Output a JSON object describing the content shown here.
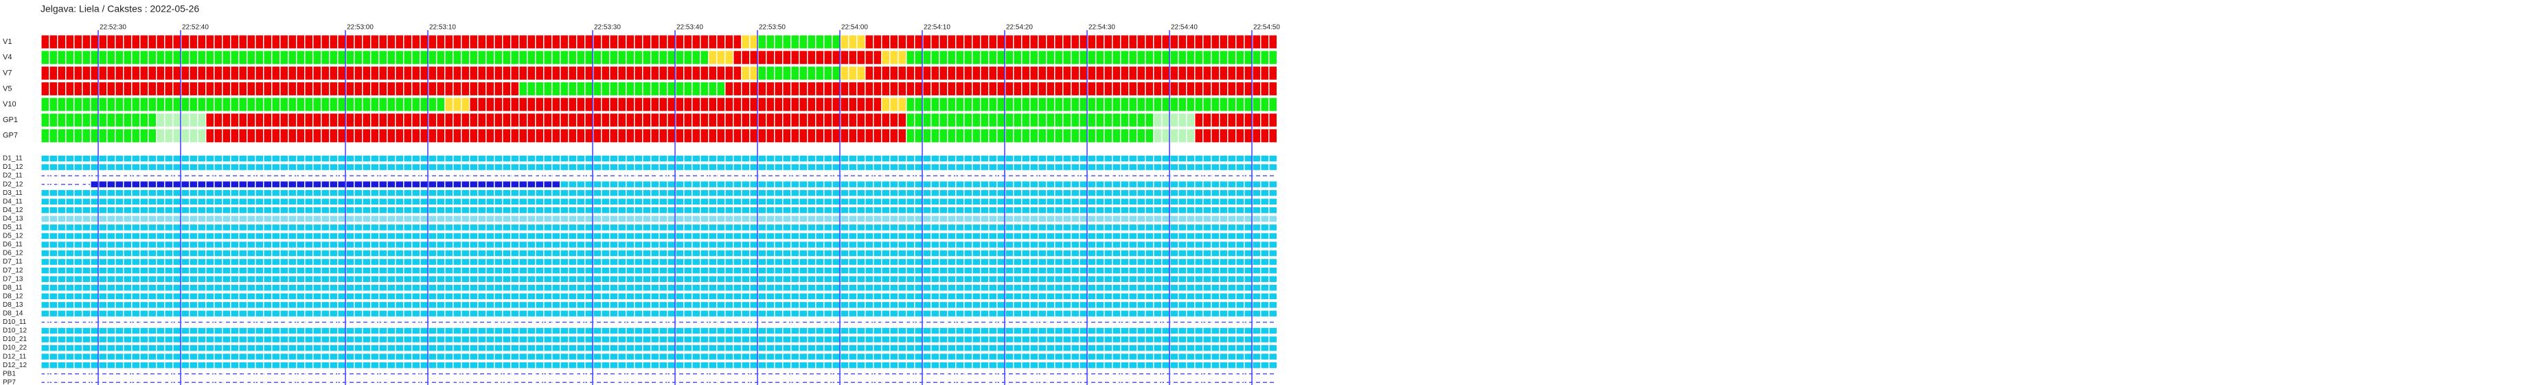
{
  "chart_data": {
    "type": "timeline",
    "title": "Jelgava: Liela / Cakstes : 2022-05-26",
    "xlim": [
      23,
      173
    ],
    "xticks": [
      {
        "value": 30,
        "label": "22:52:30"
      },
      {
        "value": 40,
        "label": "22:52:40"
      },
      {
        "value": 60,
        "label": "22:53:00"
      },
      {
        "value": 70,
        "label": "22:53:10"
      },
      {
        "value": 90,
        "label": "22:53:30"
      },
      {
        "value": 100,
        "label": "22:53:40"
      },
      {
        "value": 110,
        "label": "22:53:50"
      },
      {
        "value": 120,
        "label": "22:54:00"
      },
      {
        "value": 130,
        "label": "22:54:10"
      },
      {
        "value": 140,
        "label": "22:54:20"
      },
      {
        "value": 150,
        "label": "22:54:30"
      },
      {
        "value": 160,
        "label": "22:54:40"
      },
      {
        "value": 170,
        "label": "22:54:50"
      }
    ],
    "grid_color": "#3a3aff",
    "signals": [
      {
        "name": "V1",
        "segments": [
          {
            "start": 23,
            "end": 108,
            "color": "#ee0000"
          },
          {
            "start": 108,
            "end": 110,
            "color": "#ffdd33"
          },
          {
            "start": 110,
            "end": 120,
            "color": "#11ee11"
          },
          {
            "start": 120,
            "end": 123,
            "color": "#ffdd33"
          },
          {
            "start": 123,
            "end": 173,
            "color": "#ee0000"
          }
        ]
      },
      {
        "name": "V4",
        "segments": [
          {
            "start": 23,
            "end": 104,
            "color": "#11ee11"
          },
          {
            "start": 104,
            "end": 107,
            "color": "#ffdd33"
          },
          {
            "start": 107,
            "end": 125,
            "color": "#ee0000"
          },
          {
            "start": 125,
            "end": 128,
            "color": "#ffdd33"
          },
          {
            "start": 128,
            "end": 173,
            "color": "#11ee11"
          }
        ]
      },
      {
        "name": "V7",
        "segments": [
          {
            "start": 23,
            "end": 108,
            "color": "#ee0000"
          },
          {
            "start": 108,
            "end": 110,
            "color": "#ffdd33"
          },
          {
            "start": 110,
            "end": 120,
            "color": "#11ee11"
          },
          {
            "start": 120,
            "end": 123,
            "color": "#ffdd33"
          },
          {
            "start": 123,
            "end": 173,
            "color": "#ee0000"
          }
        ]
      },
      {
        "name": "V5",
        "segments": [
          {
            "start": 23,
            "end": 81,
            "color": "#ee0000"
          },
          {
            "start": 81,
            "end": 106,
            "color": "#11ee11"
          },
          {
            "start": 106,
            "end": 173,
            "color": "#ee0000"
          }
        ]
      },
      {
        "name": "V10",
        "segments": [
          {
            "start": 23,
            "end": 72,
            "color": "#11ee11"
          },
          {
            "start": 72,
            "end": 75,
            "color": "#ffdd33"
          },
          {
            "start": 75,
            "end": 125,
            "color": "#ee0000"
          },
          {
            "start": 125,
            "end": 128,
            "color": "#ffdd33"
          },
          {
            "start": 128,
            "end": 173,
            "color": "#11ee11"
          }
        ]
      },
      {
        "name": "GP1",
        "segments": [
          {
            "start": 23,
            "end": 37,
            "color": "#11ee11"
          },
          {
            "start": 37,
            "end": 43,
            "color": "#b8f5b8"
          },
          {
            "start": 43,
            "end": 128,
            "color": "#ee0000"
          },
          {
            "start": 128,
            "end": 158,
            "color": "#11ee11"
          },
          {
            "start": 158,
            "end": 163,
            "color": "#b8f5b8"
          },
          {
            "start": 163,
            "end": 173,
            "color": "#ee0000"
          }
        ]
      },
      {
        "name": "GP7",
        "segments": [
          {
            "start": 23,
            "end": 37,
            "color": "#11ee11"
          },
          {
            "start": 37,
            "end": 43,
            "color": "#b8f5b8"
          },
          {
            "start": 43,
            "end": 128,
            "color": "#ee0000"
          },
          {
            "start": 128,
            "end": 158,
            "color": "#11ee11"
          },
          {
            "start": 158,
            "end": 163,
            "color": "#b8f5b8"
          },
          {
            "start": 163,
            "end": 173,
            "color": "#ee0000"
          }
        ]
      }
    ],
    "detectors": [
      {
        "name": "D1_11",
        "segments": [
          {
            "start": 23,
            "end": 173,
            "color": "#11ccee"
          }
        ]
      },
      {
        "name": "D1_12",
        "segments": [
          {
            "start": 23,
            "end": 173,
            "color": "#11ccee"
          }
        ]
      },
      {
        "name": "D2_11",
        "segments": [
          {
            "start": 23,
            "end": 173,
            "style": "dashed"
          }
        ]
      },
      {
        "name": "D2_12",
        "segments": [
          {
            "start": 23,
            "end": 29,
            "style": "dashed"
          },
          {
            "start": 29,
            "end": 86,
            "color": "#1a1add"
          },
          {
            "start": 86,
            "end": 173,
            "color": "#11ccee"
          }
        ]
      },
      {
        "name": "D3_11",
        "segments": [
          {
            "start": 23,
            "end": 173,
            "color": "#11ccee"
          }
        ]
      },
      {
        "name": "D4_11",
        "segments": [
          {
            "start": 23,
            "end": 173,
            "color": "#11ccee"
          }
        ]
      },
      {
        "name": "D4_12",
        "segments": [
          {
            "start": 23,
            "end": 173,
            "color": "#11ccee"
          }
        ]
      },
      {
        "name": "D4_13",
        "segments": [
          {
            "start": 23,
            "end": 173,
            "color": "#88ddf0"
          }
        ]
      },
      {
        "name": "D5_11",
        "segments": [
          {
            "start": 23,
            "end": 173,
            "color": "#11ccee"
          }
        ]
      },
      {
        "name": "D5_12",
        "segments": [
          {
            "start": 23,
            "end": 173,
            "color": "#11ccee"
          }
        ]
      },
      {
        "name": "D6_11",
        "segments": [
          {
            "start": 23,
            "end": 173,
            "color": "#11ccee"
          }
        ]
      },
      {
        "name": "D6_12",
        "segments": [
          {
            "start": 23,
            "end": 173,
            "color": "#11ccee"
          }
        ]
      },
      {
        "name": "D7_11",
        "segments": [
          {
            "start": 23,
            "end": 173,
            "color": "#11ccee"
          }
        ]
      },
      {
        "name": "D7_12",
        "segments": [
          {
            "start": 23,
            "end": 173,
            "color": "#11ccee"
          }
        ]
      },
      {
        "name": "D7_13",
        "segments": [
          {
            "start": 23,
            "end": 173,
            "color": "#11ccee"
          }
        ]
      },
      {
        "name": "D8_11",
        "segments": [
          {
            "start": 23,
            "end": 173,
            "color": "#11ccee"
          }
        ]
      },
      {
        "name": "D8_12",
        "segments": [
          {
            "start": 23,
            "end": 173,
            "color": "#11ccee"
          }
        ]
      },
      {
        "name": "D8_13",
        "segments": [
          {
            "start": 23,
            "end": 173,
            "color": "#11ccee"
          }
        ]
      },
      {
        "name": "D8_14",
        "segments": [
          {
            "start": 23,
            "end": 173,
            "color": "#11ccee"
          }
        ]
      },
      {
        "name": "D10_11",
        "segments": [
          {
            "start": 23,
            "end": 173,
            "style": "dashed"
          }
        ]
      },
      {
        "name": "D10_12",
        "segments": [
          {
            "start": 23,
            "end": 173,
            "color": "#11ccee"
          }
        ]
      },
      {
        "name": "D10_21",
        "segments": [
          {
            "start": 23,
            "end": 173,
            "color": "#11ccee"
          }
        ]
      },
      {
        "name": "D10_22",
        "segments": [
          {
            "start": 23,
            "end": 173,
            "color": "#11ccee"
          }
        ]
      },
      {
        "name": "D12_11",
        "segments": [
          {
            "start": 23,
            "end": 173,
            "color": "#11ccee"
          }
        ]
      },
      {
        "name": "D12_12",
        "segments": [
          {
            "start": 23,
            "end": 173,
            "color": "#11ccee"
          }
        ]
      },
      {
        "name": "PB1",
        "segments": [
          {
            "start": 23,
            "end": 173,
            "style": "dashed"
          }
        ]
      },
      {
        "name": "PP7",
        "segments": [
          {
            "start": 23,
            "end": 173,
            "style": "dashed"
          }
        ]
      }
    ]
  }
}
